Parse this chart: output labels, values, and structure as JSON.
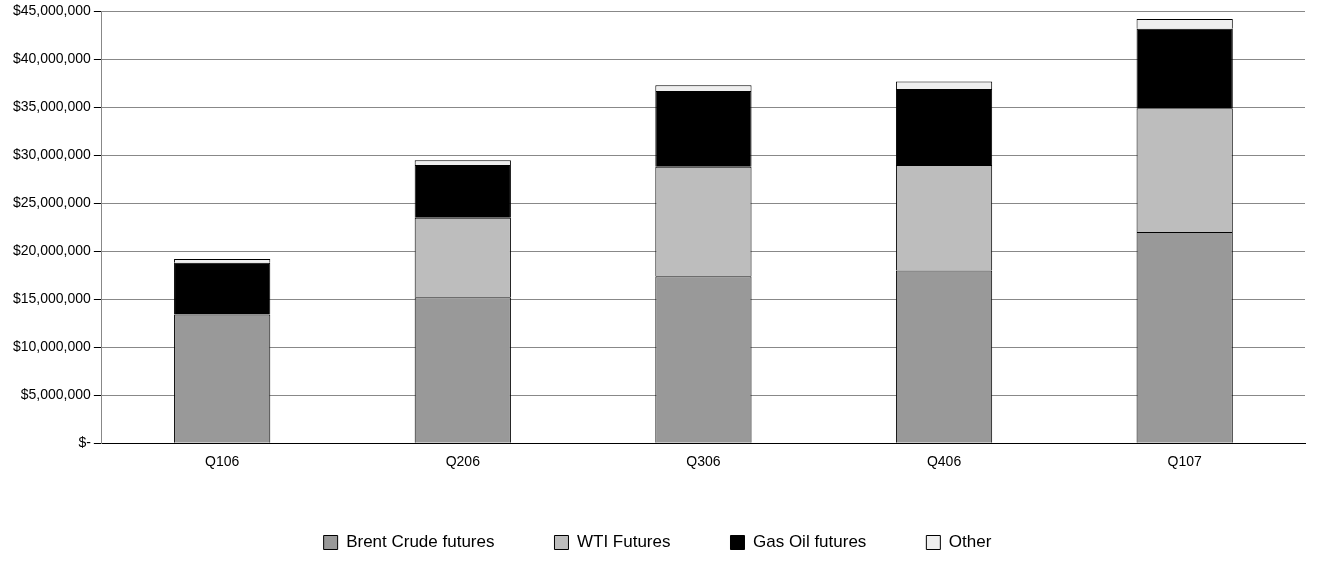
{
  "chart_data": {
    "type": "bar",
    "stacked": true,
    "categories": [
      "Q106",
      "Q206",
      "Q306",
      "Q406",
      "Q107"
    ],
    "series": [
      {
        "name": "Brent Crude futures",
        "color": "#999999",
        "values": [
          13400000,
          15200000,
          17400000,
          18000000,
          22000000
        ]
      },
      {
        "name": "WTI Futures",
        "color": "#bdbdbd",
        "values": [
          0,
          8300000,
          11400000,
          11000000,
          12900000
        ]
      },
      {
        "name": "Gas Oil futures",
        "color": "#000000",
        "values": [
          5400000,
          5500000,
          7900000,
          7900000,
          8300000
        ]
      },
      {
        "name": "Other",
        "color": "#eeeeee",
        "values": [
          400000,
          500000,
          600000,
          800000,
          1000000
        ]
      }
    ],
    "ylim": [
      0,
      45000000
    ],
    "yticks": [
      {
        "value": 0,
        "label": "$-"
      },
      {
        "value": 5000000,
        "label": "$5,000,000"
      },
      {
        "value": 10000000,
        "label": "$10,000,000"
      },
      {
        "value": 15000000,
        "label": "$15,000,000"
      },
      {
        "value": 20000000,
        "label": "$20,000,000"
      },
      {
        "value": 25000000,
        "label": "$25,000,000"
      },
      {
        "value": 30000000,
        "label": "$30,000,000"
      },
      {
        "value": 35000000,
        "label": "$35,000,000"
      },
      {
        "value": 40000000,
        "label": "$40,000,000"
      },
      {
        "value": 45000000,
        "label": "$45,000,000"
      }
    ],
    "grid": "y",
    "legend": "bottom"
  }
}
